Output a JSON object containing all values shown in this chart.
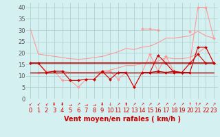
{
  "x": [
    0,
    1,
    2,
    3,
    4,
    5,
    6,
    7,
    8,
    9,
    10,
    11,
    12,
    13,
    14,
    15,
    16,
    17,
    18,
    19,
    20,
    21,
    22,
    23
  ],
  "series": [
    {
      "name": "line1_pink_smooth",
      "color": "#ff9999",
      "linewidth": 0.8,
      "marker": null,
      "zorder": 2,
      "y": [
        30.5,
        19.5,
        19.0,
        18.5,
        18.0,
        17.5,
        17.2,
        17.5,
        18.0,
        18.5,
        19.5,
        20.5,
        22.0,
        21.5,
        22.5,
        23.0,
        24.5,
        26.5,
        26.5,
        27.0,
        27.5,
        29.5,
        27.5,
        26.5
      ]
    },
    {
      "name": "line2_pink_rising",
      "color": "#ff9999",
      "linewidth": 0.8,
      "marker": null,
      "zorder": 2,
      "y": [
        15.5,
        15.5,
        12.0,
        12.0,
        12.0,
        11.5,
        11.5,
        11.5,
        11.5,
        12.0,
        12.5,
        13.5,
        14.5,
        14.5,
        15.5,
        16.0,
        16.5,
        18.0,
        17.5,
        17.5,
        18.0,
        20.0,
        22.5,
        15.5
      ]
    },
    {
      "name": "line3_pink_marker",
      "color": "#ff9999",
      "linewidth": 0.8,
      "marker": "D",
      "markersize": 2.0,
      "zorder": 3,
      "y": [
        null,
        11.5,
        11.5,
        12.0,
        8.0,
        8.0,
        5.0,
        8.5,
        8.5,
        11.5,
        12.0,
        8.5,
        11.5,
        5.0,
        11.5,
        19.5,
        12.0,
        18.5,
        12.0,
        11.5,
        15.5,
        40.0,
        40.0,
        26.5
      ]
    },
    {
      "name": "line4_pink_peaks",
      "color": "#ff9999",
      "linewidth": 0.8,
      "marker": "D",
      "markersize": 2.0,
      "zorder": 3,
      "y": [
        null,
        null,
        null,
        null,
        null,
        null,
        null,
        null,
        null,
        null,
        null,
        null,
        null,
        null,
        30.5,
        30.5,
        30.0,
        null,
        null,
        null,
        29.5,
        null,
        null,
        null
      ]
    },
    {
      "name": "line5_red_flat_high",
      "color": "#cc0000",
      "linewidth": 1.2,
      "marker": null,
      "zorder": 4,
      "y": [
        15.5,
        15.5,
        15.5,
        15.5,
        15.5,
        15.5,
        15.5,
        15.5,
        15.5,
        15.5,
        15.5,
        15.5,
        15.5,
        15.5,
        15.5,
        15.5,
        15.5,
        15.5,
        15.5,
        15.5,
        15.5,
        15.5,
        15.5,
        15.5
      ]
    },
    {
      "name": "line6_darkred_flat_low",
      "color": "#880000",
      "linewidth": 1.0,
      "marker": null,
      "zorder": 4,
      "y": [
        11.5,
        11.5,
        11.5,
        11.5,
        11.5,
        11.5,
        11.5,
        11.5,
        11.5,
        11.5,
        11.5,
        11.5,
        11.5,
        11.5,
        11.5,
        11.5,
        11.5,
        11.5,
        11.5,
        11.5,
        11.5,
        11.5,
        11.5,
        11.5
      ]
    },
    {
      "name": "line7_red_marker_zigzag",
      "color": "#cc0000",
      "linewidth": 0.8,
      "marker": "D",
      "markersize": 2.0,
      "zorder": 5,
      "y": [
        15.5,
        15.5,
        11.5,
        12.0,
        12.0,
        8.0,
        8.0,
        8.5,
        8.5,
        12.0,
        8.5,
        11.5,
        11.5,
        5.0,
        11.5,
        11.5,
        12.0,
        11.5,
        12.0,
        11.5,
        15.5,
        19.5,
        15.5,
        15.5
      ]
    },
    {
      "name": "line8_red_late",
      "color": "#cc0000",
      "linewidth": 0.8,
      "marker": "D",
      "markersize": 2.0,
      "zorder": 4,
      "y": [
        null,
        null,
        null,
        null,
        null,
        null,
        null,
        null,
        null,
        null,
        null,
        null,
        null,
        null,
        null,
        11.5,
        19.0,
        15.5,
        11.5,
        11.5,
        11.5,
        22.5,
        22.5,
        15.5
      ]
    }
  ],
  "xlabel": "Vent moyen/en rafales ( km/h )",
  "xlim": [
    -0.5,
    23.5
  ],
  "ylim": [
    0,
    42
  ],
  "yticks": [
    0,
    5,
    10,
    15,
    20,
    25,
    30,
    35,
    40
  ],
  "xticks": [
    0,
    1,
    2,
    3,
    4,
    5,
    6,
    7,
    8,
    9,
    10,
    11,
    12,
    13,
    14,
    15,
    16,
    17,
    18,
    19,
    20,
    21,
    22,
    23
  ],
  "background_color": "#d4f0f0",
  "grid_color": "#aacccc",
  "xlabel_color": "#cc0000",
  "xlabel_fontsize": 7,
  "tick_fontsize": 6,
  "arrow_labels": [
    "↙",
    "↙",
    "↙",
    "⬇",
    "⬇",
    "→",
    "↗",
    "→",
    "→",
    "⬇",
    "↓",
    "↗",
    "⬆",
    "↗",
    "↗",
    "↗",
    "↗",
    "↗",
    "↗",
    "↗",
    "↑",
    "↑↗",
    "↗",
    "↗"
  ]
}
